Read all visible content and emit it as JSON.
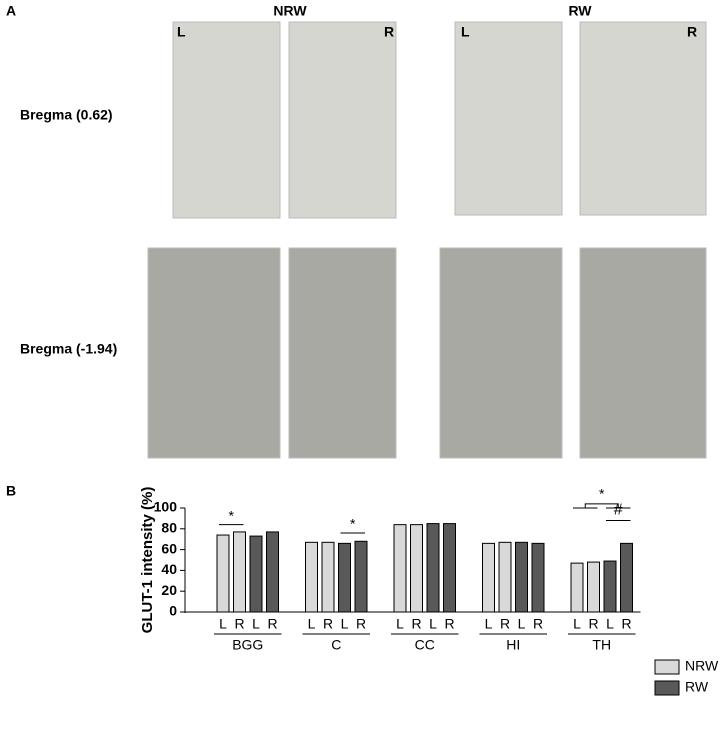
{
  "panels": {
    "a": "A",
    "b": "B"
  },
  "panel_a": {
    "columns": [
      "NRW",
      "RW"
    ],
    "sides": [
      "L",
      "R"
    ],
    "rows": [
      "Bregma (0.62)",
      "Bregma (-1.94)"
    ]
  },
  "chart_data": {
    "type": "grouped_bar",
    "ylabel": "GLUT-1 intensity (%)",
    "categories": [
      "BGG",
      "C",
      "CC",
      "HI",
      "TH"
    ],
    "sides": [
      "L",
      "R"
    ],
    "series": [
      {
        "name": "NRW",
        "color": "#d9d9d9",
        "values": [
          [
            74,
            77
          ],
          [
            67,
            67
          ],
          [
            84,
            84
          ],
          [
            66,
            67
          ],
          [
            47,
            48
          ]
        ]
      },
      {
        "name": "RW",
        "color": "#595959",
        "values": [
          [
            73,
            77
          ],
          [
            66,
            68
          ],
          [
            85,
            85
          ],
          [
            67,
            66
          ],
          [
            49,
            66
          ]
        ]
      }
    ],
    "ylim": [
      0,
      100
    ],
    "yticks": [
      0,
      20,
      40,
      60,
      80,
      100
    ],
    "annotations": [
      "*",
      "*",
      "*",
      "#"
    ],
    "legend": "lower right"
  }
}
